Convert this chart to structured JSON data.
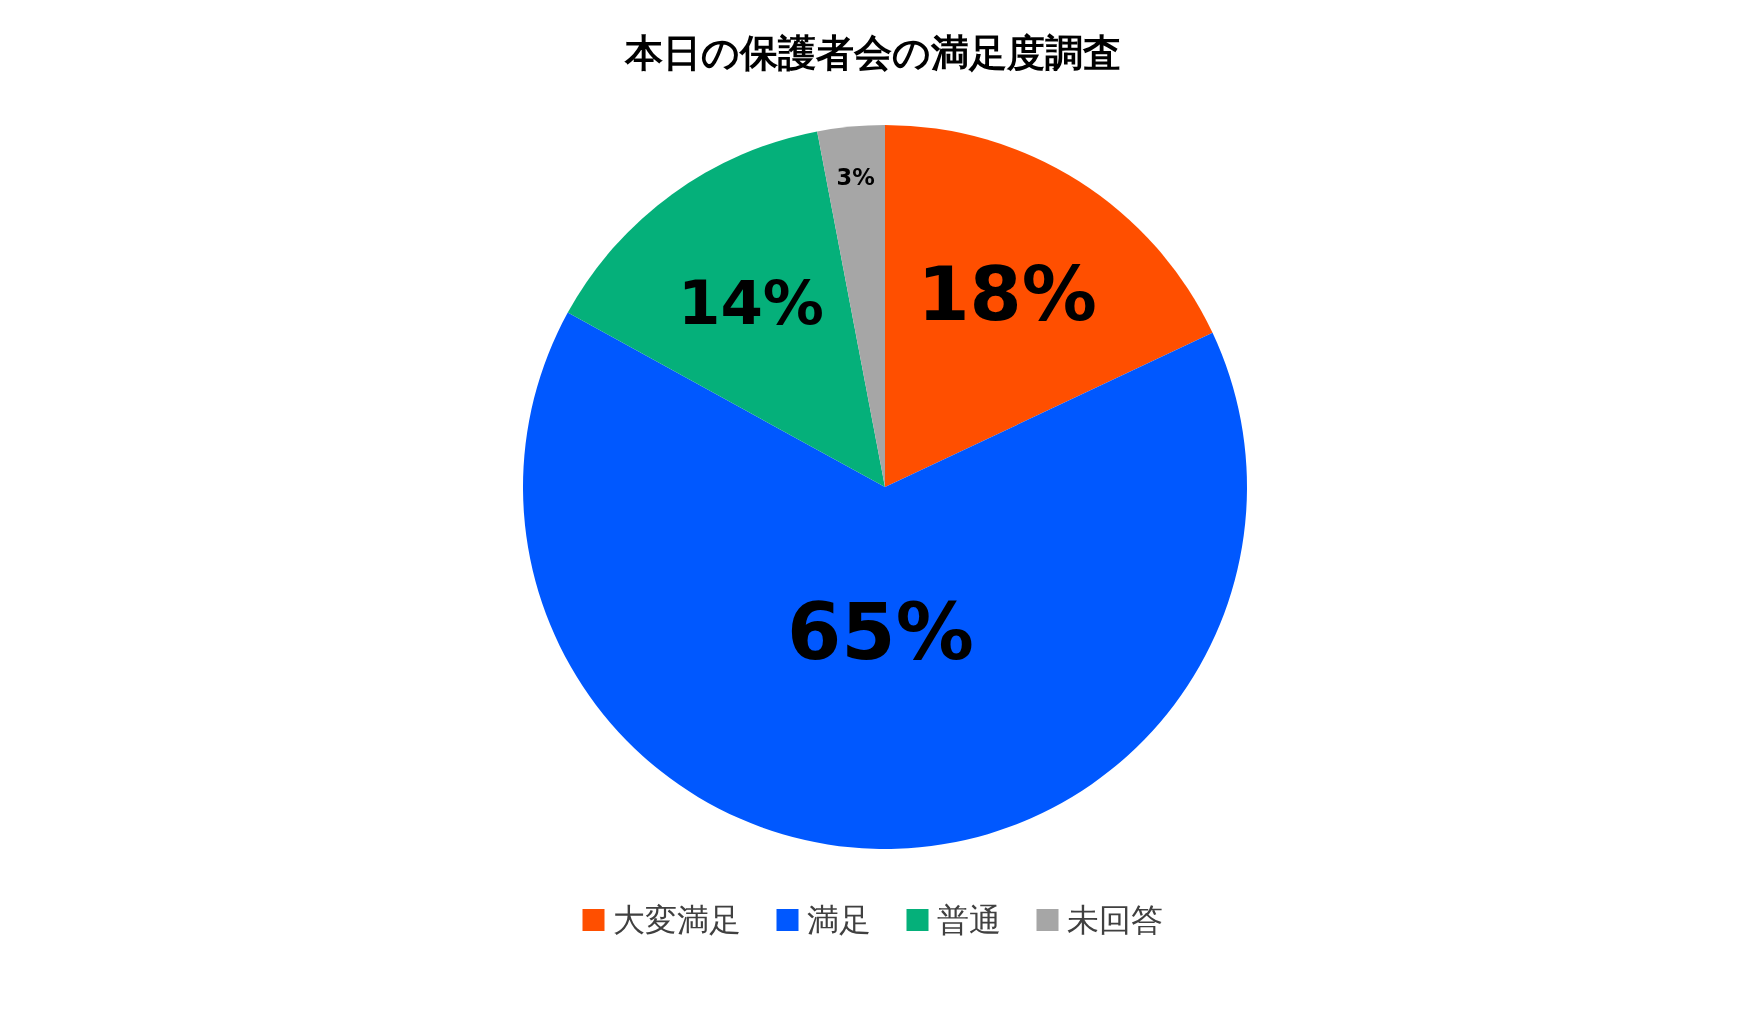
{
  "chart_data": {
    "type": "pie",
    "title": "本日の保護者会の満足度調査",
    "categories": [
      "大変満足",
      "満足",
      "普通",
      "未回答"
    ],
    "values": [
      18,
      65,
      14,
      3
    ],
    "colors": [
      "#ff4f00",
      "#0058ff",
      "#05b07a",
      "#a6a6a6"
    ],
    "value_labels": [
      "18%",
      "65%",
      "14%",
      "3%"
    ],
    "legend": "bottom"
  }
}
